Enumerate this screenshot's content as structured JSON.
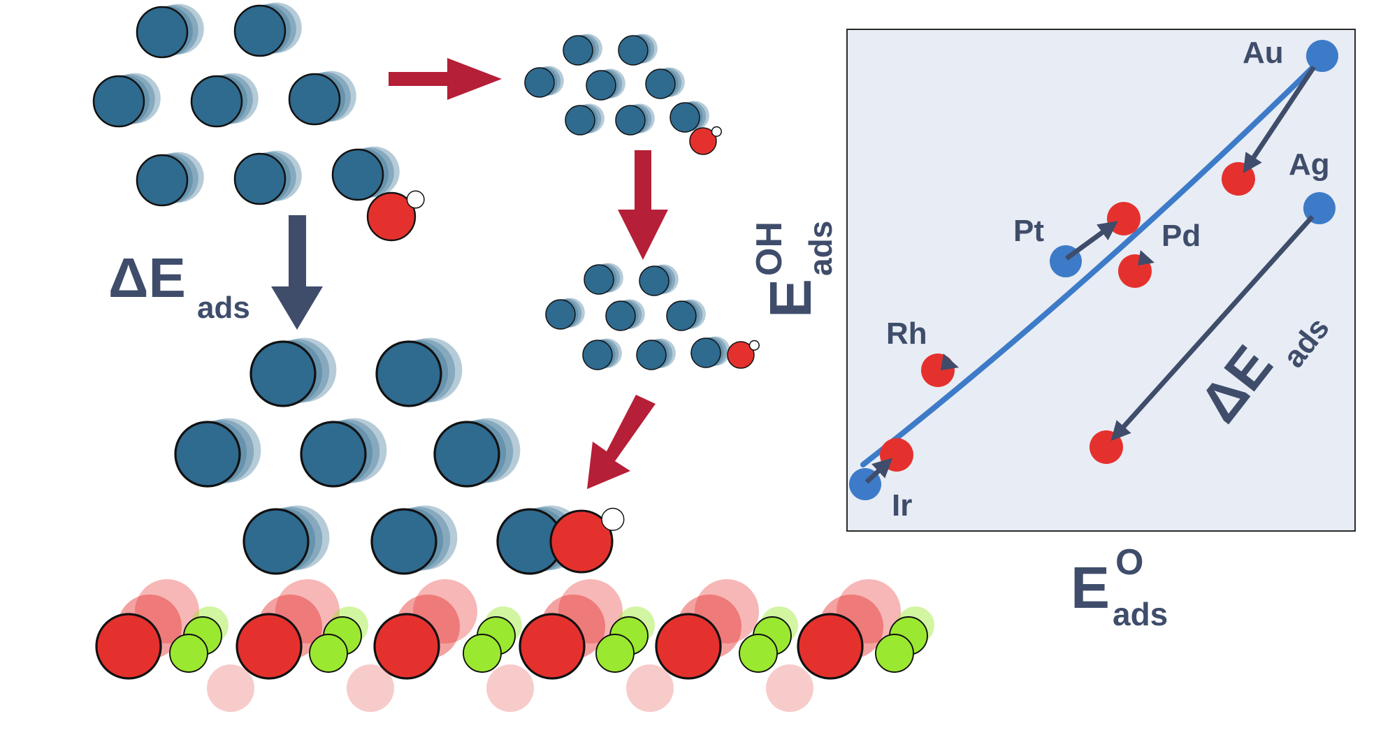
{
  "colors": {
    "metal": "#2f6a8f",
    "oxygen": "#e5312e",
    "hydrogen": "#ffffff",
    "support_cation": "#9be831",
    "arrow_process": "#b51f37",
    "arrow_delta": "#3f4d6b",
    "plot_background": "#e8ecf4",
    "scaling_line": "#3d7bc8",
    "metal_marker": "#3d7bc8",
    "text": "#3f4d6b"
  },
  "icons": {
    "metal_atom": "blue-sphere",
    "oxygen_atom": "red-sphere",
    "hydrogen_atom": "white-sphere",
    "support_atom": "green-sphere"
  },
  "left_panel": {
    "delta_label": "ΔE",
    "delta_sub": "ads"
  },
  "plot": {
    "y_label": "E",
    "y_sup": "OH",
    "y_sub": "ads",
    "x_label": "E",
    "x_sup": "O",
    "x_sub": "ads",
    "delta_label": "ΔE",
    "delta_sub": "ads",
    "metals": [
      {
        "name": "Au"
      },
      {
        "name": "Ag"
      },
      {
        "name": "Pt"
      },
      {
        "name": "Pd"
      },
      {
        "name": "Rh"
      },
      {
        "name": "Ir"
      }
    ]
  }
}
